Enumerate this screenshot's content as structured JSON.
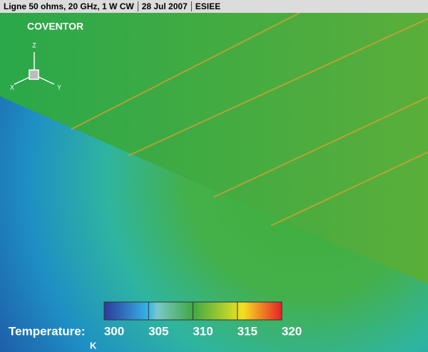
{
  "header": {
    "title": "Ligne 50 ohms, 20 GHz, 1 W CW",
    "date": "28 Jul 2007",
    "source": "ESIEE"
  },
  "logo": "COVENTOR",
  "axes_triad": {
    "z": "Z",
    "x": "X",
    "y": "Y"
  },
  "colorbar": {
    "label": "Temperature:",
    "unit": "K",
    "lim": [
      300,
      320
    ],
    "ticks": [
      300,
      305,
      310,
      315,
      320
    ]
  }
}
